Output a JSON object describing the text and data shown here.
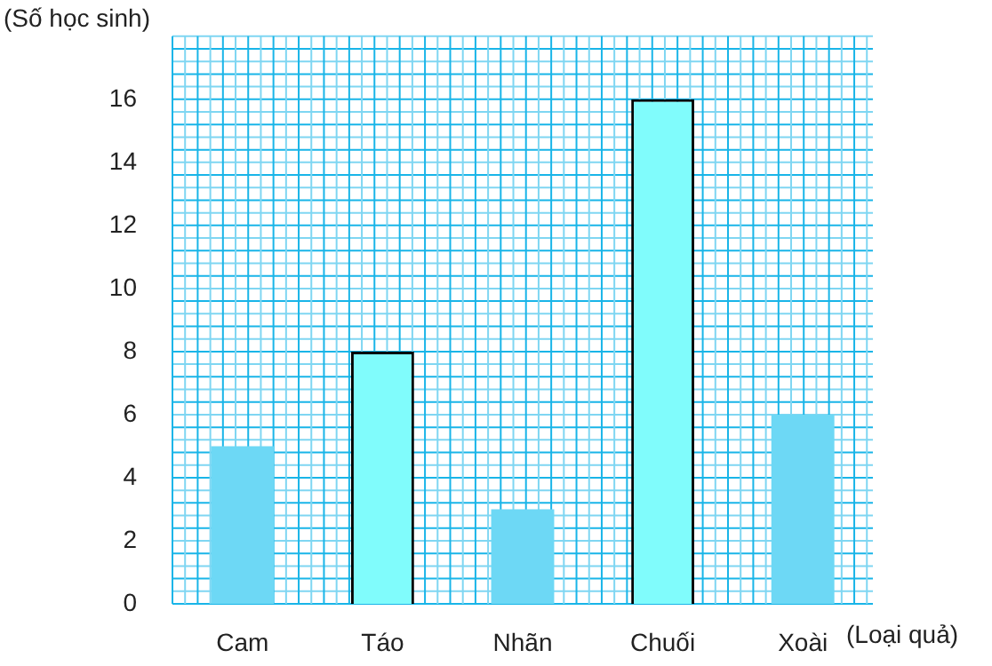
{
  "chart_data": {
    "type": "bar",
    "xlabel": "(Loại quả)",
    "ylabel": "(Số học sinh)",
    "categories": [
      "Cam",
      "Táo",
      "Nhãn",
      "Chuối",
      "Xoài"
    ],
    "values": [
      5,
      8,
      3,
      16,
      6
    ],
    "colors": [
      "#6dd8f5",
      "#80fcfc",
      "#6dd8f5",
      "#80fcfc",
      "#6dd8f5"
    ],
    "ylim": [
      0,
      18
    ],
    "yticks": [
      0,
      2,
      4,
      6,
      8,
      10,
      12,
      14,
      16
    ],
    "grid": true
  }
}
